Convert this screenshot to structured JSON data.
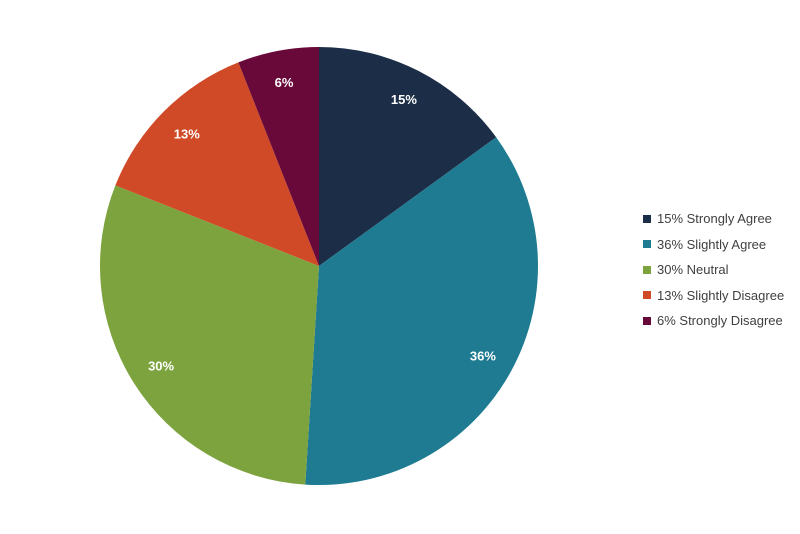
{
  "chart_data": {
    "type": "pie",
    "categories": [
      "Strongly Agree",
      "Slightly Agree",
      "Neutral",
      "Slightly Disagree",
      "Strongly Disagree"
    ],
    "values": [
      15,
      36,
      30,
      13,
      6
    ],
    "slice_labels": [
      "15%",
      "36%",
      "30%",
      "13%",
      "6%"
    ],
    "legend": [
      "15% Strongly Agree",
      "36% Slightly Agree",
      "30% Neutral",
      "13% Slightly Disagree",
      "6% Strongly Disagree"
    ],
    "colors": [
      "#1c2e47",
      "#1e7b91",
      "#7da33e",
      "#d04a27",
      "#68093a"
    ],
    "start": "12 o'clock",
    "direction": "clockwise",
    "legend_position": "right"
  }
}
